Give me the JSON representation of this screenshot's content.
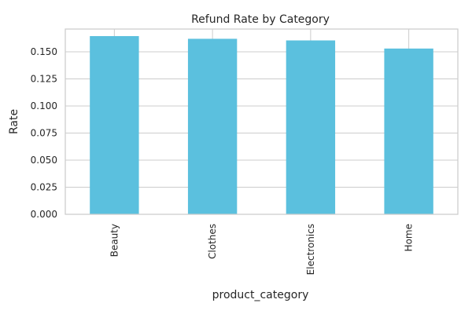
{
  "chart_data": {
    "type": "bar",
    "title": "Refund Rate by Category",
    "xlabel": "product_category",
    "ylabel": "Rate",
    "categories": [
      "Beauty",
      "Clothes",
      "Electronics",
      "Home"
    ],
    "values": [
      0.1645,
      0.162,
      0.1605,
      0.153
    ],
    "ylim": [
      0,
      0.171
    ],
    "yticks": [
      "0.000",
      "0.025",
      "0.050",
      "0.075",
      "0.100",
      "0.125",
      "0.150"
    ],
    "ytick_values": [
      0,
      0.025,
      0.05,
      0.075,
      0.1,
      0.125,
      0.15
    ],
    "grid": true,
    "legend": "none",
    "bar_color": "#5bc0de",
    "grid_color": "#cccccc"
  }
}
